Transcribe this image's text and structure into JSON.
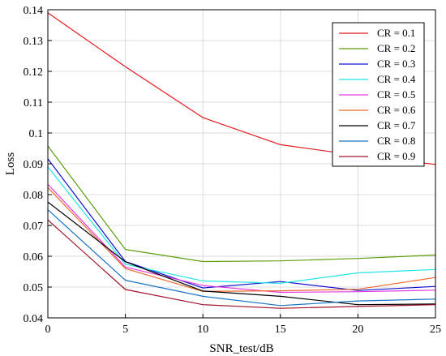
{
  "chart_data": {
    "type": "line",
    "xlabel": "SNR_test/dB",
    "ylabel": "Loss",
    "xlim": [
      0,
      25
    ],
    "ylim": [
      0.04,
      0.14
    ],
    "x": [
      0,
      5,
      10,
      15,
      20,
      25
    ],
    "x_ticks": [
      "0",
      "5",
      "10",
      "15",
      "20",
      "25"
    ],
    "y_ticks": [
      "0.04",
      "0.05",
      "0.06",
      "0.07",
      "0.08",
      "0.09",
      "0.1",
      "0.11",
      "0.12",
      "0.13",
      "0.14"
    ],
    "grid": true,
    "legend_position": "top-right",
    "series": [
      {
        "name": "CR = 0.1",
        "color": "#e41a1c",
        "values": [
          0.139,
          0.1215,
          0.105,
          0.0962,
          0.0927,
          0.0898
        ]
      },
      {
        "name": "CR = 0.2",
        "color": "#5e9e10",
        "values": [
          0.0958,
          0.0622,
          0.0583,
          0.0585,
          0.0593,
          0.0604
        ]
      },
      {
        "name": "CR = 0.3",
        "color": "#1010d0",
        "values": [
          0.0916,
          0.0583,
          0.0497,
          0.0518,
          0.0489,
          0.0502
        ]
      },
      {
        "name": "CR = 0.4",
        "color": "#22e6e6",
        "values": [
          0.089,
          0.0574,
          0.052,
          0.0512,
          0.0546,
          0.0557
        ]
      },
      {
        "name": "CR = 0.5",
        "color": "#e23ae2",
        "values": [
          0.0834,
          0.0565,
          0.0505,
          0.0483,
          0.0485,
          0.049
        ]
      },
      {
        "name": "CR = 0.6",
        "color": "#ee6a2c",
        "values": [
          0.0823,
          0.056,
          0.0486,
          0.0488,
          0.0493,
          0.0531
        ]
      },
      {
        "name": "CR = 0.7",
        "color": "#000000",
        "values": [
          0.0776,
          0.0582,
          0.0487,
          0.047,
          0.0443,
          0.0445
        ]
      },
      {
        "name": "CR = 0.8",
        "color": "#1a73c7",
        "values": [
          0.0751,
          0.0522,
          0.047,
          0.044,
          0.0455,
          0.0461
        ]
      },
      {
        "name": "CR = 0.9",
        "color": "#a0152c",
        "values": [
          0.0718,
          0.0492,
          0.0443,
          0.0431,
          0.0437,
          0.0443
        ]
      }
    ]
  }
}
